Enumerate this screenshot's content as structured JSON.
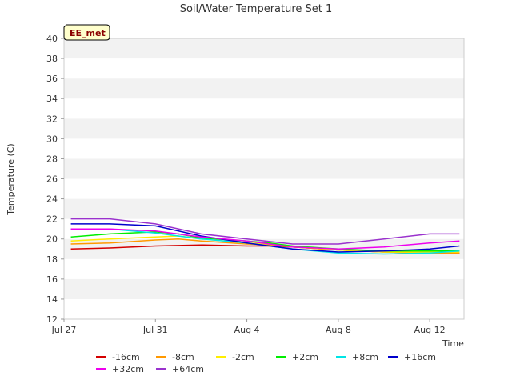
{
  "chart_data": {
    "type": "line",
    "title": "Soil/Water Temperature Set 1",
    "xlabel": "Time",
    "ylabel": "Temperature (C)",
    "site_label": "EE_met",
    "xlim": [
      0,
      17.5
    ],
    "ylim": [
      12,
      40
    ],
    "x_ticks": [
      {
        "value": 0,
        "label": "Jul 27"
      },
      {
        "value": 4,
        "label": "Jul 31"
      },
      {
        "value": 8,
        "label": "Aug 4"
      },
      {
        "value": 12,
        "label": "Aug 8"
      },
      {
        "value": 16,
        "label": "Aug 12"
      }
    ],
    "y_ticks": [
      12,
      14,
      16,
      18,
      20,
      22,
      24,
      26,
      28,
      30,
      32,
      34,
      36,
      38,
      40
    ],
    "grid": "horizontal bands",
    "legend_position": "bottom",
    "series": [
      {
        "name": "-16cm",
        "color": "#d40000",
        "x": [
          0.3,
          2,
          4,
          6,
          8,
          9,
          10,
          12,
          14,
          16,
          17.3
        ],
        "y": [
          19.0,
          19.1,
          19.3,
          19.4,
          19.3,
          19.3,
          19.2,
          18.9,
          18.7,
          18.6,
          18.6
        ]
      },
      {
        "name": "-8cm",
        "color": "#ff9900",
        "x": [
          0.3,
          2,
          4,
          5,
          6,
          8,
          9,
          10,
          12,
          14,
          16,
          17.3
        ],
        "y": [
          19.5,
          19.6,
          19.9,
          20.0,
          19.8,
          19.5,
          19.4,
          19.2,
          18.9,
          18.7,
          18.6,
          18.6
        ]
      },
      {
        "name": "-2cm",
        "color": "#ffee00",
        "x": [
          0.3,
          2,
          4,
          5,
          6,
          8,
          9,
          10,
          12,
          14,
          16,
          17.3
        ],
        "y": [
          19.8,
          20.0,
          20.2,
          20.3,
          20.0,
          19.6,
          19.5,
          19.3,
          18.9,
          18.7,
          18.7,
          18.7
        ]
      },
      {
        "name": "+2cm",
        "color": "#00ee00",
        "x": [
          0.3,
          2,
          4,
          5,
          6,
          8,
          9,
          10,
          12,
          14,
          16,
          17.3
        ],
        "y": [
          20.2,
          20.5,
          20.7,
          20.5,
          20.1,
          19.8,
          19.6,
          19.3,
          19.0,
          18.8,
          18.8,
          18.8
        ]
      },
      {
        "name": "+8cm",
        "color": "#00e5e5",
        "x": [
          0.3,
          2,
          4,
          6,
          8,
          10,
          12,
          14,
          16,
          17.3
        ],
        "y": [
          21.0,
          21.0,
          20.6,
          20.0,
          19.6,
          19.0,
          18.6,
          18.5,
          18.6,
          18.8
        ]
      },
      {
        "name": "+16cm",
        "color": "#0000cc",
        "x": [
          0.3,
          2,
          4,
          6,
          8,
          10,
          12,
          14,
          16,
          17.3
        ],
        "y": [
          21.5,
          21.5,
          21.3,
          20.3,
          19.6,
          19.0,
          18.7,
          18.8,
          19.0,
          19.3
        ]
      },
      {
        "name": "+32cm",
        "color": "#ee00ee",
        "x": [
          0.3,
          2,
          4,
          6,
          8,
          10,
          12,
          14,
          16,
          17.3
        ],
        "y": [
          21.0,
          21.0,
          20.8,
          20.2,
          19.8,
          19.2,
          19.0,
          19.2,
          19.6,
          19.8
        ]
      },
      {
        "name": "+64cm",
        "color": "#9a32cd",
        "x": [
          0.3,
          2,
          4,
          6,
          8,
          10,
          12,
          14,
          16,
          17.3
        ],
        "y": [
          22.0,
          22.0,
          21.5,
          20.5,
          20.0,
          19.5,
          19.5,
          20.0,
          20.5,
          20.5
        ]
      }
    ]
  }
}
